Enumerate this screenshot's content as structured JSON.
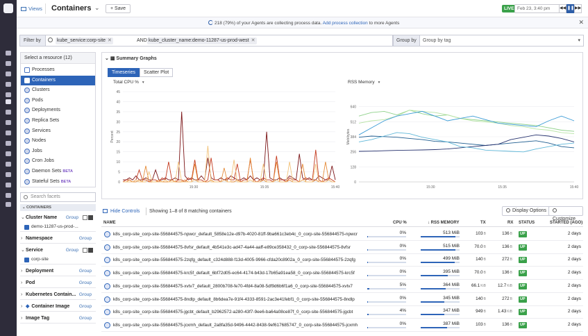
{
  "topbar": {
    "views_label": "Views",
    "title": "Containers",
    "save_label": "Save",
    "live_label": "LIVE",
    "time_label": "Feb 23, 3:40 pm"
  },
  "banner": {
    "text": "218 (79%) of your Agents are collecting process data.",
    "link": "Add process collection",
    "suffix": "to more Agents"
  },
  "filter": {
    "label": "Filter by",
    "tags": [
      "kube_service:corp-site",
      "kube_cluster_name:demo-11287-us-prod-west"
    ],
    "and_label": "AND",
    "groupby_label": "Group by",
    "groupby_placeholder": "Group by tag"
  },
  "resources": {
    "header": "Select a resource (12)",
    "items": [
      "Processes",
      "Containers",
      "Clusters",
      "Pods",
      "Deployments",
      "Replica Sets",
      "Services",
      "Nodes",
      "Jobs",
      "Cron Jobs",
      "Daemon Sets",
      "Stateful Sets"
    ],
    "beta": "BETA",
    "selected": "Containers"
  },
  "facets": {
    "search_placeholder": "Search facets",
    "section": "CONTAINERS",
    "group_label": "Group",
    "items": [
      {
        "title": "Cluster Name",
        "open": true,
        "value": "demo-11287-us-prod-..."
      },
      {
        "title": "Namespace",
        "open": false
      },
      {
        "title": "Service",
        "open": true,
        "value": "corp-site"
      },
      {
        "title": "Deployment",
        "open": false
      },
      {
        "title": "Pod",
        "open": false
      },
      {
        "title": "Kubernetes Contain...",
        "open": false
      },
      {
        "title": "Container Image",
        "open": false
      },
      {
        "title": "Image Tag",
        "open": false
      }
    ]
  },
  "charts": {
    "section": "Summary Graphs",
    "tabs": [
      "Timeseries",
      "Scatter Plot"
    ],
    "active_tab": "Timeseries"
  },
  "chart_data": [
    {
      "type": "line",
      "title": "Total CPU %",
      "ylabel": "Percent",
      "ylim": [
        0,
        45
      ],
      "yticks": [
        0,
        5,
        10,
        15,
        20,
        25,
        30,
        35,
        40,
        45
      ],
      "xticks": [
        "15:30",
        "15:35",
        "15:40"
      ],
      "xrange": [
        "15:25",
        "15:40"
      ],
      "colors": [
        "#7b1416",
        "#c43a1e",
        "#e58c3a",
        "#f2c27a"
      ],
      "series": [
        {
          "values": [
            1,
            1,
            2,
            1,
            3,
            1,
            1,
            2,
            1,
            1,
            6,
            1,
            1,
            2,
            1,
            1,
            2,
            1,
            35,
            3,
            1,
            2,
            1,
            1,
            3,
            1,
            12,
            2,
            1,
            1,
            2,
            1,
            1,
            3,
            2,
            1,
            1,
            2,
            1,
            3,
            1,
            2,
            1,
            1,
            25,
            2,
            1,
            1,
            2,
            1,
            1,
            3,
            2,
            1,
            14,
            2,
            1,
            2,
            1,
            1,
            3,
            2,
            1,
            1,
            8,
            1
          ]
        },
        {
          "values": [
            0,
            1,
            1,
            0,
            1,
            6,
            1,
            1,
            0,
            1,
            1,
            0,
            2,
            1,
            10,
            1,
            0,
            1,
            1,
            0,
            2,
            1,
            11,
            1,
            1,
            0,
            1,
            12,
            1,
            1,
            0,
            1,
            2,
            1,
            1,
            9,
            0,
            1,
            1,
            11,
            1,
            0,
            1,
            2,
            1,
            1,
            0,
            13,
            1,
            1,
            0,
            2,
            1,
            1,
            0,
            1,
            2,
            1,
            1,
            16,
            1,
            0,
            1,
            2,
            1,
            0
          ]
        },
        {
          "values": [
            0,
            0,
            1,
            0,
            0,
            1,
            0,
            8,
            0,
            0,
            0,
            1,
            0,
            0,
            0,
            1,
            0,
            0,
            0,
            1,
            0,
            0,
            9,
            0,
            0,
            0,
            0,
            1,
            0,
            0,
            0,
            7,
            0,
            0,
            0,
            1,
            0,
            0,
            0,
            12,
            0,
            0,
            0,
            1,
            0,
            0,
            0,
            10,
            0,
            0,
            0,
            1,
            0,
            0,
            0,
            9,
            0,
            0,
            0,
            1,
            0,
            0,
            10,
            1,
            0,
            0
          ]
        },
        {
          "values": [
            0,
            0,
            0,
            0,
            1,
            0,
            0,
            0,
            5,
            0,
            0,
            0,
            0,
            1,
            0,
            0,
            0,
            10,
            0,
            0,
            0,
            0,
            1,
            0,
            0,
            0,
            18,
            0,
            0,
            0,
            0,
            1,
            0,
            0,
            11,
            0,
            0,
            0,
            0,
            1,
            0,
            0,
            0,
            9,
            0,
            0,
            0,
            1,
            0,
            0,
            0,
            10,
            0,
            0,
            0,
            1,
            0,
            0,
            0,
            9,
            0,
            0,
            0,
            1,
            0,
            0
          ]
        }
      ]
    },
    {
      "type": "line",
      "title": "RSS Memory",
      "ylabel": "Mebibytes",
      "ylim": [
        0,
        768
      ],
      "yticks": [
        0,
        128,
        256,
        384,
        512,
        640
      ],
      "xticks": [
        "15:30",
        "15:35",
        "15:40"
      ],
      "xrange": [
        "15:25",
        "15:40"
      ],
      "colors": [
        "#8fd18a",
        "#b9e4a6",
        "#3a9bd6",
        "#1d5c8f",
        "#26326e",
        "#5fb7d8"
      ],
      "series": [
        {
          "values": [
            560,
            590,
            600,
            570,
            610,
            580,
            560,
            570,
            540,
            530,
            520,
            510,
            500,
            490,
            480,
            460,
            440,
            430
          ]
        },
        {
          "values": [
            500,
            520,
            530,
            560,
            610,
            600,
            590,
            570,
            540,
            520,
            510,
            500,
            480,
            470,
            450,
            440,
            420,
            410
          ]
        },
        {
          "values": [
            400,
            460,
            520,
            560,
            580,
            600,
            560,
            520,
            540,
            560,
            530,
            500,
            490,
            480,
            470,
            520,
            560,
            520
          ]
        },
        {
          "values": [
            380,
            390,
            385,
            380,
            370,
            360,
            345,
            340,
            330,
            320,
            310,
            320,
            330,
            340,
            350,
            330,
            300,
            290
          ]
        },
        {
          "values": [
            260,
            262,
            265,
            268,
            270,
            272,
            275,
            280,
            290,
            300,
            310,
            320,
            360,
            380,
            400,
            390,
            370,
            340
          ]
        },
        {
          "values": [
            340,
            360,
            390,
            420,
            410,
            380,
            360,
            340,
            300,
            290,
            270,
            265,
            260,
            255,
            280,
            300,
            320,
            330
          ]
        }
      ]
    }
  ],
  "table": {
    "hide_controls": "Hide Controls",
    "count_label": "Showing 1–8 of 8 matching containers",
    "display_options": "Display Options",
    "customize": "Customize",
    "headers": {
      "name": "NAME",
      "cpu": "CPU %",
      "mem": "RSS MEMORY",
      "tx": "TX",
      "rx": "RX",
      "status": "STATUS",
      "started": "STARTED (AGO)"
    },
    "rows": [
      {
        "name": "k8s_corp-site_corp-site-556844575-npwcr_default_5858e12e-d97b-4020-81ff-9ba661c3eb4c_0_corp-site-556844575-npwcr",
        "cpu": "0%",
        "cpu_level": 0.02,
        "mem": "513 MiB",
        "mem_level": 0.9,
        "tx": "103",
        "tx_unit": "B",
        "rx": "136",
        "rx_unit": "B",
        "status": "UP",
        "started": "2 days"
      },
      {
        "name": "k8s_corp-site_corp-site-556844575-8vfsr_default_4b541e3c-ad47-4a44-aaff-e89ce358432_0_corp-site-556844575-8vfsr",
        "cpu": "0%",
        "cpu_level": 0.02,
        "mem": "515 MiB",
        "mem_level": 0.9,
        "tx": "70.0",
        "tx_unit": "B",
        "rx": "136",
        "rx_unit": "B",
        "status": "UP",
        "started": "2 days"
      },
      {
        "name": "k8s_corp-site_corp-site-556844575-2zqfg_default_c324d888-f13d-4005-9966-cfda20c8902a_0_corp-site-556844575-2zqfg",
        "cpu": "0%",
        "cpu_level": 0.02,
        "mem": "499 MiB",
        "mem_level": 0.87,
        "tx": "140",
        "tx_unit": "B",
        "rx": "272",
        "rx_unit": "B",
        "status": "UP",
        "started": "2 days"
      },
      {
        "name": "k8s_corp-site_corp-site-556844575-krc5f_default_6bf72d05-ec64-4174-b43d-17b65a91ea58_0_corp-site-556844575-krc5f",
        "cpu": "0%",
        "cpu_level": 0.02,
        "mem": "395 MiB",
        "mem_level": 0.69,
        "tx": "70.0",
        "tx_unit": "B",
        "rx": "136",
        "rx_unit": "B",
        "status": "UP",
        "started": "2 days"
      },
      {
        "name": "k8s_corp-site_corp-site-556844575-xvtv7_default_2800b708-fe70-4fd4-8a08-5df9d6b6f1a6_0_corp-site-556844575-xvtv7",
        "cpu": "5%",
        "cpu_level": 0.05,
        "mem": "364 MiB",
        "mem_level": 0.64,
        "tx": "66.1",
        "tx_unit": "KiB",
        "rx": "12.7",
        "rx_unit": "KiB",
        "status": "UP",
        "started": "2 days"
      },
      {
        "name": "k8s_corp-site_corp-site-556844575-8ndlp_default_8b6dea7e-91f4-4333-8591-2ac3e41febf1_0_corp-site-556844575-8ndlp",
        "cpu": "0%",
        "cpu_level": 0.02,
        "mem": "345 MiB",
        "mem_level": 0.6,
        "tx": "140",
        "tx_unit": "B",
        "rx": "272",
        "rx_unit": "B",
        "status": "UP",
        "started": "2 days"
      },
      {
        "name": "k8s_corp-site_corp-site-556844575-jgcbt_default_b2962572-a280-43f7-9ee6-ba64a08ce87f_0_corp-site-556844575-jgcbt",
        "cpu": "4%",
        "cpu_level": 0.04,
        "mem": "347 MiB",
        "mem_level": 0.61,
        "tx": "949",
        "tx_unit": "B",
        "rx": "1.43",
        "rx_unit": "KiB",
        "status": "UP",
        "started": "2 days"
      },
      {
        "name": "k8s_corp-site_corp-site-556844575-jcxmh_default_2a8fa35d-9496-4442-8438-9ef617685747_0_corp-site-556844575-jcxmh",
        "cpu": "0%",
        "cpu_level": 0.02,
        "mem": "387 MiB",
        "mem_level": 0.68,
        "tx": "103",
        "tx_unit": "B",
        "rx": "136",
        "rx_unit": "B",
        "status": "UP",
        "started": "2 days"
      }
    ]
  }
}
